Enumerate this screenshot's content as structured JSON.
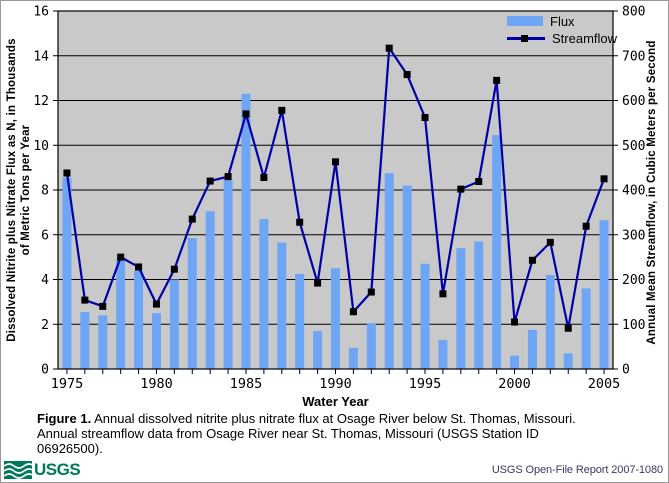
{
  "figure": {
    "caption_bold": "Figure 1.",
    "caption_text": " Annual dissolved nitrite plus nitrate flux at Osage River below St. Thomas, Missouri. Annual streamflow data from Osage River near St. Thomas, Missouri (USGS Station ID 06926500)."
  },
  "footer": {
    "logo_text": "USGS",
    "report_text": "USGS Open-File Report 2007-1080"
  },
  "chart_data": {
    "type": "bar+line",
    "xlabel": "Water Year",
    "ylabel_left_line1": "Dissolved Nitrite plus Nitrate Flux as N, in Thousands",
    "ylabel_left_line2": "of Metric Tons per Year",
    "ylabel_right": "Annual Mean Streamflow, in Cubic Meters per Second",
    "x": [
      1975,
      1976,
      1977,
      1978,
      1979,
      1980,
      1981,
      1982,
      1983,
      1984,
      1985,
      1986,
      1987,
      1988,
      1989,
      1990,
      1991,
      1992,
      1993,
      1994,
      1995,
      1996,
      1997,
      1998,
      1999,
      2000,
      2001,
      2002,
      2003,
      2004,
      2005
    ],
    "series": [
      {
        "name": "Flux",
        "type": "bar",
        "axis": "left",
        "values": [
          8.55,
          2.55,
          2.4,
          4.9,
          4.4,
          2.5,
          4.0,
          5.85,
          7.05,
          8.45,
          12.3,
          6.7,
          5.65,
          4.25,
          1.7,
          4.5,
          0.95,
          2.05,
          8.75,
          8.2,
          4.7,
          1.3,
          5.4,
          5.7,
          10.45,
          0.6,
          1.75,
          4.2,
          0.7,
          3.6,
          6.65
        ]
      },
      {
        "name": "Streamflow",
        "type": "line",
        "axis": "right",
        "marker": "black-square",
        "values": [
          438,
          154,
          140,
          250,
          228,
          145,
          223,
          335,
          420,
          430,
          570,
          428,
          578,
          328,
          192,
          463,
          128,
          172,
          717,
          658,
          562,
          168,
          402,
          419,
          645,
          105,
          243,
          283,
          91,
          319,
          425
        ]
      }
    ],
    "ylim_left": [
      0,
      16
    ],
    "ylim_right": [
      0,
      800
    ],
    "left_ticks": [
      0,
      2,
      4,
      6,
      8,
      10,
      12,
      14,
      16
    ],
    "right_ticks": [
      0,
      100,
      200,
      300,
      400,
      500,
      600,
      700,
      800
    ],
    "x_tick_labels": [
      1975,
      1980,
      1985,
      1990,
      1995,
      2000,
      2005
    ],
    "grid": true,
    "legend_position": "top-right",
    "colors": {
      "bar": "#6FA5F5",
      "line": "#0000A8",
      "marker": "#000000",
      "plot_bg": "#C9C9C9",
      "grid": "#000000",
      "logo_green": "#00795B"
    }
  }
}
